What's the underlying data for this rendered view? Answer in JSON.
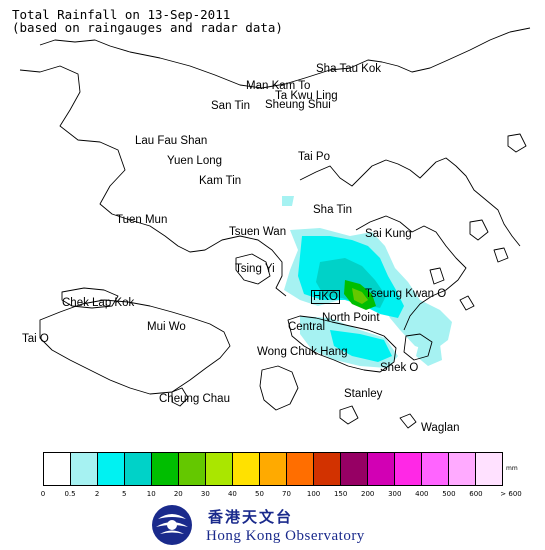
{
  "header": {
    "title_line1": "Total Rainfall on 13-Sep-2011",
    "title_line2": "(based on raingauges and radar data)"
  },
  "places": [
    {
      "key": "sha_tau_kok",
      "label": "Sha Tau Kok"
    },
    {
      "key": "man_kam_to",
      "label": "Man Kam To"
    },
    {
      "key": "ta_kwu_ling",
      "label": "Ta Kwu Ling"
    },
    {
      "key": "san_tin",
      "label": "San Tin"
    },
    {
      "key": "sheung_shui",
      "label": "Sheung Shui"
    },
    {
      "key": "lau_fau_shan",
      "label": "Lau Fau Shan"
    },
    {
      "key": "yuen_long",
      "label": "Yuen Long"
    },
    {
      "key": "tai_po",
      "label": "Tai Po"
    },
    {
      "key": "kam_tin",
      "label": "Kam Tin"
    },
    {
      "key": "sha_tin",
      "label": "Sha Tin"
    },
    {
      "key": "tuen_mun",
      "label": "Tuen Mun"
    },
    {
      "key": "tsuen_wan",
      "label": "Tsuen Wan"
    },
    {
      "key": "sai_kung",
      "label": "Sai Kung"
    },
    {
      "key": "tsing_yi",
      "label": "Tsing Yi"
    },
    {
      "key": "hko",
      "label": "HKO"
    },
    {
      "key": "tseung_kwan_o",
      "label": "Tseung Kwan O"
    },
    {
      "key": "chek_lap_kok",
      "label": "Chek Lap Kok"
    },
    {
      "key": "north_point",
      "label": "North Point"
    },
    {
      "key": "central",
      "label": "Central"
    },
    {
      "key": "mui_wo",
      "label": "Mui Wo"
    },
    {
      "key": "tai_o",
      "label": "Tai O"
    },
    {
      "key": "wong_chuk_hang",
      "label": "Wong Chuk Hang"
    },
    {
      "key": "shek_o",
      "label": "Shek O"
    },
    {
      "key": "cheung_chau",
      "label": "Cheung Chau"
    },
    {
      "key": "stanley",
      "label": "Stanley"
    },
    {
      "key": "waglan",
      "label": "Waglan"
    }
  ],
  "legend": {
    "unit": "mm",
    "colors": [
      "#ffffff",
      "#a6f2f2",
      "#00f2f2",
      "#00d2c8",
      "#00be00",
      "#64c800",
      "#aae600",
      "#ffe100",
      "#ffaa00",
      "#ff6e00",
      "#d23200",
      "#960064",
      "#d200b4",
      "#ff28e6",
      "#ff64ff",
      "#ffaaff",
      "#ffe1ff"
    ],
    "ticks": [
      "0",
      "0.5",
      "2",
      "5",
      "10",
      "20",
      "30",
      "40",
      "50",
      "70",
      "100",
      "150",
      "200",
      "300",
      "400",
      "500",
      "600",
      "> 600"
    ]
  },
  "logo": {
    "chinese": "香港天文台",
    "english": "Hong Kong Observatory"
  }
}
